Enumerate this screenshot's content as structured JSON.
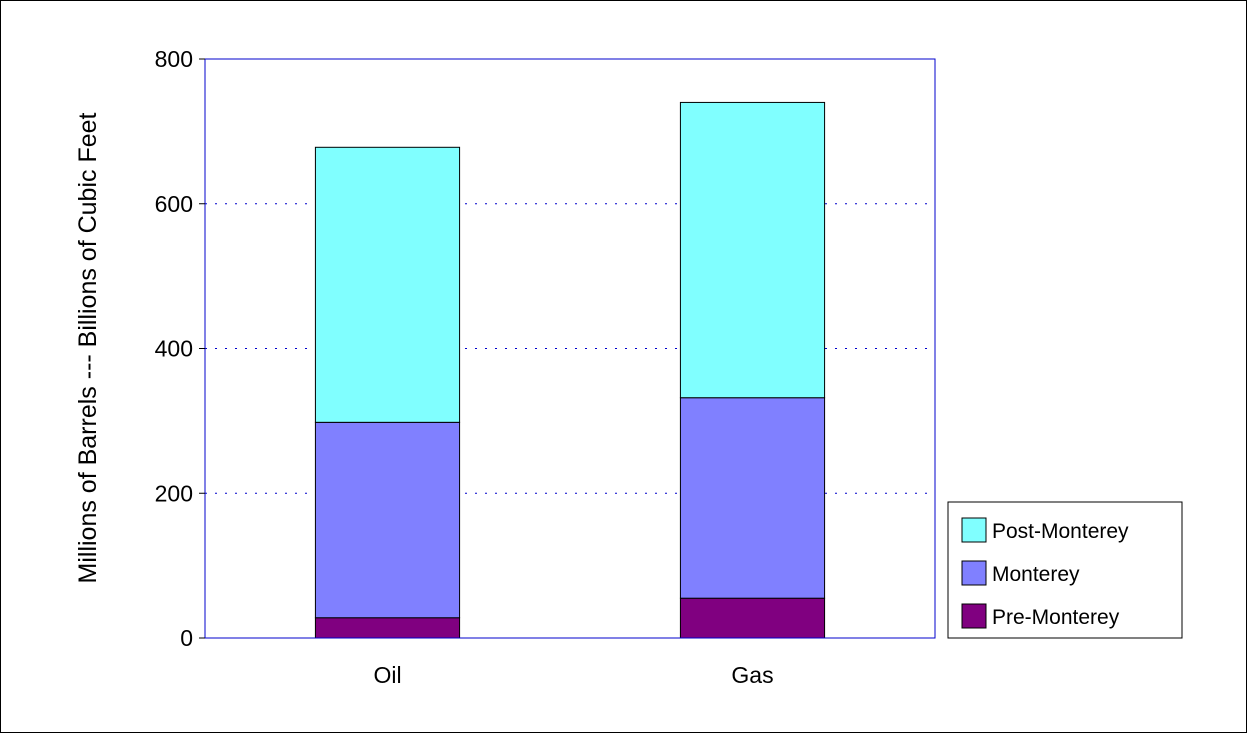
{
  "chart_data": {
    "type": "bar",
    "stacked": true,
    "categories": [
      "Oil",
      "Gas"
    ],
    "series": [
      {
        "name": "Pre-Monterey",
        "values": [
          28,
          55
        ],
        "color": "#800080"
      },
      {
        "name": "Monterey",
        "values": [
          270,
          277
        ],
        "color": "#8080ff"
      },
      {
        "name": "Post-Monterey",
        "values": [
          380,
          408
        ],
        "color": "#80ffff"
      }
    ],
    "title": "",
    "xlabel": "",
    "ylabel": "Millions of Barrels --- Billions of Cubic Feet",
    "ylim": [
      0,
      800
    ],
    "yticks": [
      "0",
      "200",
      "400",
      "600",
      "800"
    ],
    "grid": true,
    "legend_position": "right"
  },
  "colors": {
    "plot_border": "#0000cc",
    "gridline": "#0000cc"
  }
}
